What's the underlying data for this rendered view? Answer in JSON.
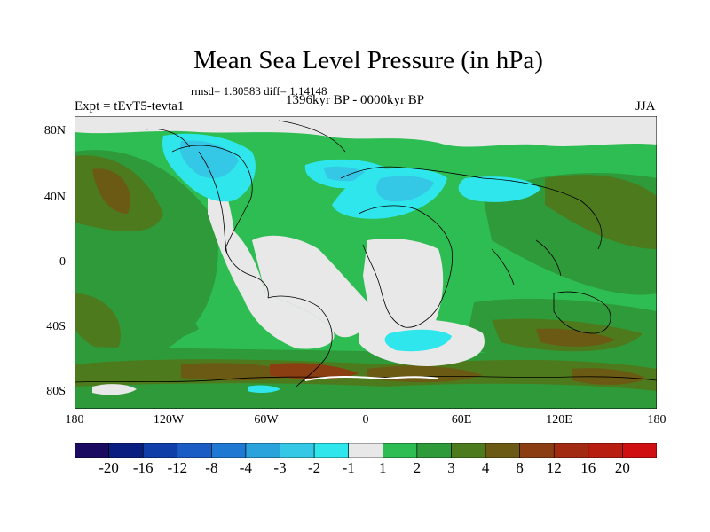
{
  "title": "Mean Sea Level Pressure (in hPa)",
  "stats_text": "rmsd= 1.80583 diff= 1.14148",
  "period": "1396kyr BP - 0000kyr BP",
  "experiment": "Expt = tEvT5-tevta1",
  "season": "JJA",
  "lat_ticks": [
    "80N",
    "40N",
    "0",
    "40S",
    "80S"
  ],
  "lon_ticks": [
    "180",
    "120W",
    "60W",
    "0",
    "60E",
    "120E",
    "180"
  ],
  "colorbar": {
    "colors": [
      "#1a0a60",
      "#0a1e82",
      "#0f3ea8",
      "#1b5cc4",
      "#1f78d2",
      "#2aa3dc",
      "#35c8e6",
      "#2ee6ec",
      "#e8e8e8",
      "#2ebd52",
      "#2e9a3a",
      "#4d7a1c",
      "#6b5a14",
      "#8a3e12",
      "#a22a10",
      "#b81e10",
      "#d01010"
    ],
    "labels": [
      "-20",
      "-16",
      "-12",
      "-8",
      "-4",
      "-3",
      "-2",
      "-1",
      "1",
      "2",
      "3",
      "4",
      "8",
      "12",
      "16",
      "20"
    ]
  },
  "colors": {
    "neutral": "#e8e8e8",
    "green": "#2ebd52",
    "dark_green": "#2e9a3a",
    "olive": "#4d7a1c",
    "brown": "#6b5a14",
    "cyan": "#2ee6ec",
    "teal": "#35c8e6",
    "blue": "#1f78d2"
  }
}
